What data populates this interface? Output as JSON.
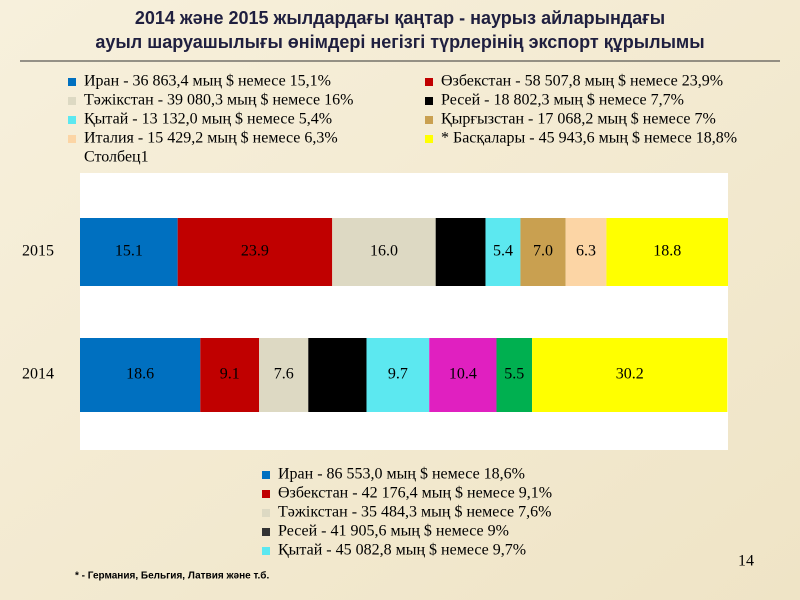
{
  "title": [
    "2014 және 2015 жылдардағы қаңтар - наурыз айларындағы",
    "ауыл шаруашылығы өнімдері негізгі түрлерінің экспорт құрылымы"
  ],
  "chart_data": {
    "type": "stacked-bar-horizontal",
    "categories": [
      "2015",
      "2014"
    ],
    "bars": [
      {
        "values": [
          15.1,
          23.9,
          16.0,
          7.7,
          5.4,
          7.0,
          6.3,
          18.8
        ],
        "value_labels": [
          "15.1",
          "23.9",
          "16.0",
          null,
          "5.4",
          "7.0",
          "6.3",
          "18.8"
        ],
        "colors": [
          "#0070c0",
          "#c00000",
          "#ddd9c3",
          "#000000",
          "#5ce8f0",
          "#c9a050",
          "#fcd5a5",
          "#ffff00"
        ]
      },
      {
        "values": [
          18.6,
          9.1,
          7.6,
          9,
          9.7,
          10.4,
          5.5,
          30.2
        ],
        "value_labels": [
          "18.6",
          "9.1",
          "7.6",
          null,
          "9.7",
          "10.4",
          "5.5",
          "30.2"
        ],
        "colors": [
          "#0070c0",
          "#c00000",
          "#ddd9c3",
          "#000000",
          "#5ce8f0",
          "#e020c0",
          "#00b050",
          "#ffff00"
        ]
      }
    ],
    "legend_top": [
      {
        "text": "Иран - 36 863,4 мың $ немесе 15,1%",
        "color": "#0070c0"
      },
      {
        "text": "Өзбекстан - 58 507,8 мың $ немесе 23,9%",
        "color": "#c00000"
      },
      {
        "text": "Тәжікстан - 39 080,3 мың $ немесе 16%",
        "color": "#ddd9c3"
      },
      {
        "text": "Ресей - 18 802,3 мың $ немесе 7,7%",
        "color": "#000000"
      },
      {
        "text": "Қытай - 13 132,0 мың $ немесе 5,4%",
        "color": "#5ce8f0"
      },
      {
        "text": "Қырғызстан - 17 068,2 мың $ немесе 7%",
        "color": "#c9a050"
      },
      {
        "text": "Италия - 15 429,2 мың $ немесе 6,3%",
        "color": "#fcd5a5"
      },
      {
        "text": "* Басқалары - 45 943,6 мың $ немесе 18,8%",
        "color": "#ffff00"
      }
    ],
    "legend_note": "Столбец1",
    "legend_bottom": [
      {
        "text": "Иран - 86 553,0 мың $ немесе 18,6%",
        "color": "#0070c0"
      },
      {
        "text": "Өзбекстан - 42 176,4 мың $ немесе 9,1%",
        "color": "#c00000"
      },
      {
        "text": "Тәжікстан - 35 484,3 мың $ немесе 7,6%",
        "color": "#ddd9c3"
      },
      {
        "text": "Ресей - 41 905,6 мың $ немесе 9%",
        "color": "#333333"
      },
      {
        "text": "Қытай - 45 082,8 мың $ немесе 9,7%",
        "color": "#5ce8f0"
      }
    ]
  },
  "footnote": "* - Германия, Бельгия, Латвия және т.б.",
  "page_number": "14"
}
